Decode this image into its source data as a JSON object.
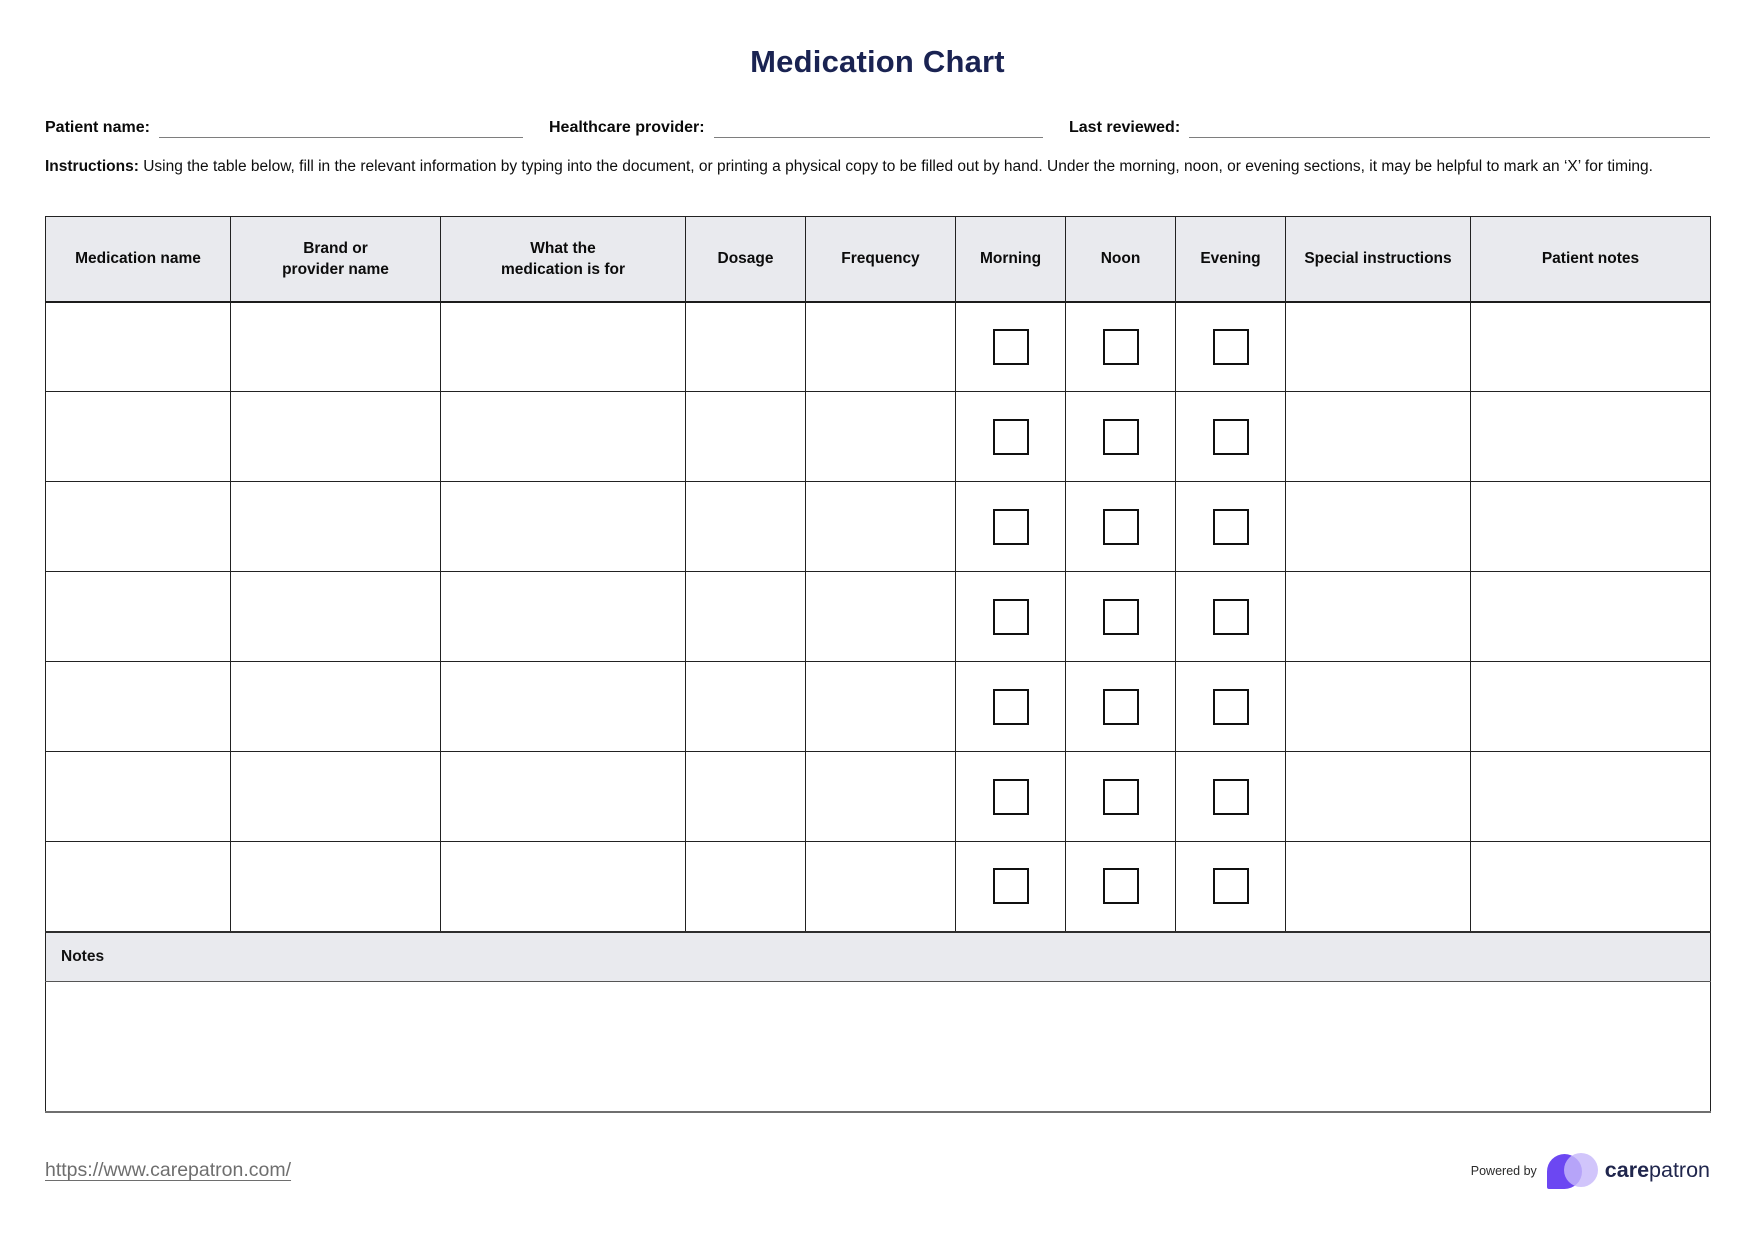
{
  "header": {
    "title": "Medication Chart"
  },
  "form": {
    "patient_name_label": "Patient name:",
    "healthcare_provider_label": "Healthcare provider:",
    "last_reviewed_label": "Last reviewed:",
    "patient_name_value": "",
    "healthcare_provider_value": "",
    "last_reviewed_value": ""
  },
  "instructions": {
    "label": "Instructions:",
    "text": "Using the table below, fill in the relevant information by typing into the document, or printing a physical copy to be filled out by hand. Under the morning, noon, or evening sections, it may be helpful to mark an ‘X’ for timing."
  },
  "table": {
    "columns": [
      "Medication name",
      "Brand or provider name",
      "What the medication is for",
      "Dosage",
      "Frequency",
      "Morning",
      "Noon",
      "Evening",
      "Special instructions",
      "Patient notes"
    ],
    "checkbox_columns": [
      "Morning",
      "Noon",
      "Evening"
    ],
    "row_count": 7,
    "cells_empty": true,
    "checkboxes_checked": false,
    "notes_label": "Notes",
    "notes_value": ""
  },
  "footer": {
    "link": "https://www.carepatron.com/",
    "powered_by": "Powered by",
    "brand_bold": "care",
    "brand_regular": "patron"
  },
  "colors": {
    "title_navy": "#1a2352",
    "table_header_gray": "#e9eaee",
    "brand_purple": "#6c47f2",
    "brand_lavender": "#c7b8fa",
    "brand_navy": "#20264d",
    "link_gray": "#6e6e6e"
  }
}
